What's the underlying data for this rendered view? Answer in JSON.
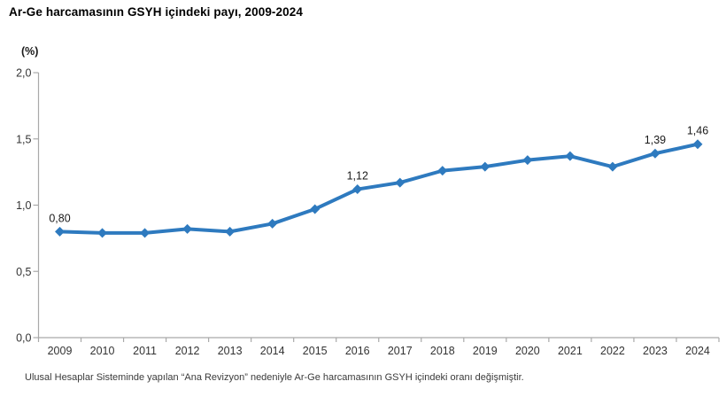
{
  "title": "Ar-Ge harcamasının GSYH içindeki payı, 2009-2024",
  "footnote": "Ulusal Hesaplar Sisteminde yapılan “Ana Revizyon” nedeniyle Ar-Ge harcamasının GSYH içindeki oranı değişmiştir.",
  "chart_data": {
    "type": "line",
    "title": "Ar-Ge harcamasının GSYH içindeki payı, 2009-2024",
    "unit_label": "(%)",
    "xlabel": "",
    "ylabel": "(%)",
    "categories": [
      "2009",
      "2010",
      "2011",
      "2012",
      "2013",
      "2014",
      "2015",
      "2016",
      "2017",
      "2018",
      "2019",
      "2020",
      "2021",
      "2022",
      "2023",
      "2024"
    ],
    "series": [
      {
        "name": "Ar-Ge harcamasının GSYH içindeki payı (%)",
        "values": [
          0.8,
          0.79,
          0.79,
          0.82,
          0.8,
          0.86,
          0.97,
          1.12,
          1.17,
          1.26,
          1.29,
          1.34,
          1.37,
          1.29,
          1.39,
          1.46
        ]
      }
    ],
    "point_labels": {
      "0": "0,80",
      "7": "1,12",
      "14": "1,39",
      "15": "1,46"
    },
    "y_ticks": {
      "values": [
        0,
        0.5,
        1,
        1.5,
        2
      ],
      "labels": [
        "0,0",
        "0,5",
        "1,0",
        "1,5",
        "2,0"
      ]
    },
    "ylim": [
      0,
      2
    ],
    "grid": false,
    "legend_position": "none",
    "marker": "diamond",
    "colors": {
      "line": "#2e7abf",
      "axis": "#a9a9a9",
      "tick_label": "#333333",
      "data_label": "#1a1a1a"
    }
  }
}
